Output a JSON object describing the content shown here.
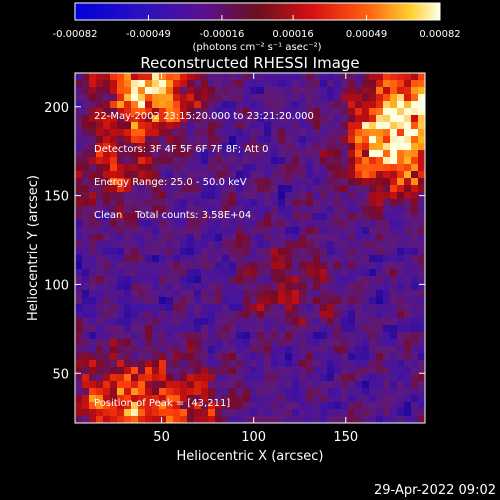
{
  "chart_data": {
    "type": "heatmap",
    "title": "Reconstructed RHESSI Image",
    "xlabel": "Heliocentric X (arcsec)",
    "ylabel": "Heliocentric Y (arcsec)",
    "xlim": [
      3,
      193
    ],
    "ylim": [
      22,
      219
    ],
    "xticks": [
      50,
      100,
      150
    ],
    "yticks": [
      50,
      100,
      150,
      200
    ],
    "xtick_labels": [
      "50",
      "100",
      "150"
    ],
    "ytick_labels": [
      "50",
      "100",
      "150",
      "200"
    ],
    "colorbar": {
      "ticks": [
        -0.00082,
        -0.00049,
        -0.00016,
        0.00016,
        0.00049,
        0.00082
      ],
      "tick_labels": [
        "-0.00082",
        "-0.00049",
        "-0.00016",
        "0.00016",
        "0.00049",
        "0.00082"
      ],
      "range": [
        -0.00082,
        0.00082
      ],
      "units_label": "(photons cm⁻² s⁻¹ asec⁻²)"
    },
    "annotations": [
      "22-May-2002 23:15:20.000 to 23:21:20.000",
      "Detectors: 3F 4F 5F 6F 7F 8F; Att 0",
      "Energy Range: 25.0 - 50.0 keV",
      "Clean    Total counts: 3.58E+04"
    ],
    "peak_text": "Position of Peak = [43,211]",
    "peak": [
      43,
      211
    ],
    "bright_regions": [
      {
        "x": 43,
        "y": 211,
        "level": 1.0
      },
      {
        "x": 175,
        "y": 175,
        "level": 0.9
      },
      {
        "x": 185,
        "y": 203,
        "level": 0.75
      },
      {
        "x": 25,
        "y": 35,
        "level": 0.65
      },
      {
        "x": 60,
        "y": 30,
        "level": 0.55
      },
      {
        "x": 120,
        "y": 100,
        "level": 0.35
      },
      {
        "x": 25,
        "y": 165,
        "level": 0.45
      }
    ]
  },
  "footer": {
    "timestamp": "29-Apr-2022 09:02"
  },
  "colors": {
    "background": "#000000",
    "foreground": "#ffffff"
  }
}
